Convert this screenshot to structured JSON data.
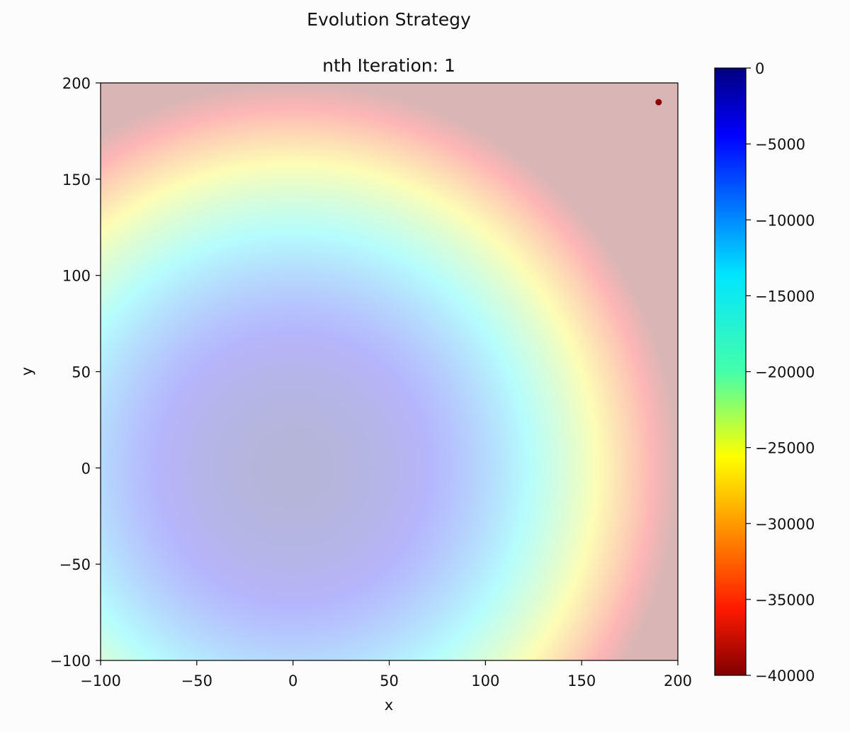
{
  "figure": {
    "suptitle": "Evolution Strategy"
  },
  "chart_data": {
    "type": "heatmap",
    "title": "nth Iteration: 1",
    "xlabel": "x",
    "ylabel": "y",
    "xlim": [
      -100,
      200
    ],
    "ylim": [
      -100,
      200
    ],
    "xticks": [
      -100,
      -50,
      0,
      50,
      100,
      150,
      200
    ],
    "yticks": [
      -100,
      -50,
      0,
      50,
      100,
      150,
      200
    ],
    "xtick_labels": [
      "−100",
      "−50",
      "0",
      "50",
      "100",
      "150",
      "200"
    ],
    "ytick_labels": [
      "−100",
      "−50",
      "0",
      "50",
      "100",
      "150",
      "200"
    ],
    "surface": {
      "function": "-(x^2 + y^2)",
      "colormap": "jet",
      "alpha": 0.28,
      "vmin": -40000,
      "vmax": 0
    },
    "colorbar": {
      "ticks": [
        0,
        -5000,
        -10000,
        -15000,
        -20000,
        -25000,
        -30000,
        -35000,
        -40000
      ],
      "tick_labels": [
        "0",
        "−5000",
        "−10000",
        "−15000",
        "−20000",
        "−25000",
        "−30000",
        "−35000",
        "−40000"
      ]
    },
    "points": [
      {
        "x": 190,
        "y": 190,
        "color": "#8b0000"
      }
    ],
    "grid": false
  }
}
